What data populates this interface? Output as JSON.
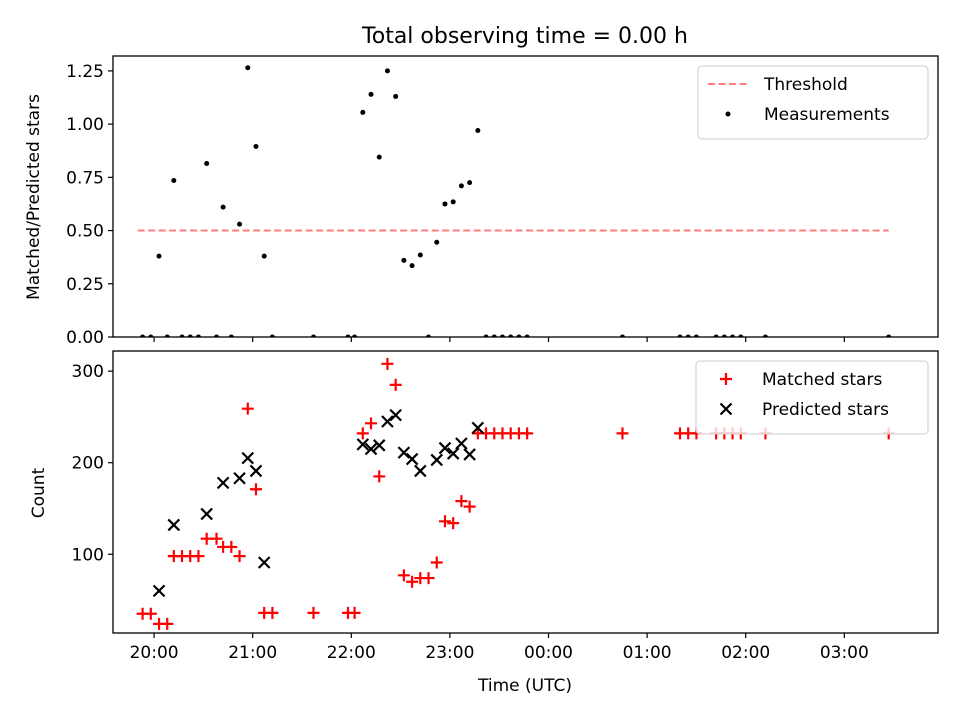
{
  "figure": {
    "title": "Total observing time = 0.00 h",
    "xlabel": "Time (UTC)"
  },
  "chart_data": [
    {
      "type": "scatter",
      "panel": "top",
      "xlabel": "",
      "ylabel": "Matched/Predicted stars",
      "ylim": [
        0,
        1.32
      ],
      "yticks": [
        "0.00",
        "0.25",
        "0.50",
        "0.75",
        "1.00",
        "1.25"
      ],
      "ytick_values": [
        0,
        0.25,
        0.5,
        0.75,
        1.0,
        1.25
      ],
      "xlim": [
        "19:35",
        "03:57"
      ],
      "legend_position": "upper right",
      "threshold": {
        "name": "Threshold",
        "value": 0.5,
        "x_range": [
          "19:50",
          "03:27"
        ],
        "color": "#ff7f7f",
        "style": "dashed"
      },
      "series": [
        {
          "name": "Measurements",
          "color": "#000000",
          "marker": "dot",
          "points": [
            [
              "19:53",
              0.0
            ],
            [
              "19:58",
              0.0
            ],
            [
              "20:03",
              0.38
            ],
            [
              "20:08",
              0.0
            ],
            [
              "20:12",
              0.735
            ],
            [
              "20:17",
              0.0
            ],
            [
              "20:22",
              0.0
            ],
            [
              "20:27",
              0.0
            ],
            [
              "20:32",
              0.815
            ],
            [
              "20:38",
              0.0
            ],
            [
              "20:42",
              0.61
            ],
            [
              "20:47",
              0.0
            ],
            [
              "20:52",
              0.53
            ],
            [
              "20:57",
              1.265
            ],
            [
              "21:02",
              0.895
            ],
            [
              "21:07",
              0.38
            ],
            [
              "21:12",
              0.0
            ],
            [
              "21:37",
              0.0
            ],
            [
              "21:58",
              0.0
            ],
            [
              "22:02",
              0.0
            ],
            [
              "22:07",
              1.055
            ],
            [
              "22:12",
              1.14
            ],
            [
              "22:17",
              0.845
            ],
            [
              "22:22",
              1.25
            ],
            [
              "22:27",
              1.13
            ],
            [
              "22:32",
              0.36
            ],
            [
              "22:37",
              0.335
            ],
            [
              "22:42",
              0.385
            ],
            [
              "22:47",
              0.0
            ],
            [
              "22:52",
              0.445
            ],
            [
              "22:57",
              0.625
            ],
            [
              "23:02",
              0.635
            ],
            [
              "23:07",
              0.71
            ],
            [
              "23:12",
              0.725
            ],
            [
              "23:17",
              0.97
            ],
            [
              "23:22",
              0.0
            ],
            [
              "23:27",
              0.0
            ],
            [
              "23:32",
              0.0
            ],
            [
              "23:37",
              0.0
            ],
            [
              "23:42",
              0.0
            ],
            [
              "23:47",
              0.0
            ],
            [
              "00:45",
              0.0
            ],
            [
              "01:20",
              0.0
            ],
            [
              "01:25",
              0.0
            ],
            [
              "01:30",
              0.0
            ],
            [
              "01:42",
              0.0
            ],
            [
              "01:47",
              0.0
            ],
            [
              "01:52",
              0.0
            ],
            [
              "01:57",
              0.0
            ],
            [
              "02:12",
              0.0
            ],
            [
              "03:27",
              0.0
            ]
          ]
        }
      ]
    },
    {
      "type": "scatter",
      "panel": "bottom",
      "xlabel": "Time (UTC)",
      "ylabel": "Count",
      "ylim": [
        14,
        322
      ],
      "yticks": [
        "100",
        "200",
        "300"
      ],
      "ytick_values": [
        100,
        200,
        300
      ],
      "xlim": [
        "19:35",
        "03:57"
      ],
      "xticks": [
        "20:00",
        "21:00",
        "22:00",
        "23:00",
        "00:00",
        "01:00",
        "02:00",
        "03:00"
      ],
      "legend_position": "upper right",
      "series": [
        {
          "name": "Matched stars",
          "color": "#ff0000",
          "marker": "plus",
          "points": [
            [
              "19:53",
              35
            ],
            [
              "19:58",
              35
            ],
            [
              "20:03",
              24
            ],
            [
              "20:08",
              24
            ],
            [
              "20:12",
              98
            ],
            [
              "20:17",
              98
            ],
            [
              "20:22",
              98
            ],
            [
              "20:27",
              98
            ],
            [
              "20:32",
              117
            ],
            [
              "20:38",
              117
            ],
            [
              "20:42",
              108
            ],
            [
              "20:47",
              108
            ],
            [
              "20:52",
              98
            ],
            [
              "20:57",
              259
            ],
            [
              "21:02",
              171
            ],
            [
              "21:07",
              36
            ],
            [
              "21:12",
              36
            ],
            [
              "21:37",
              36
            ],
            [
              "21:58",
              36
            ],
            [
              "22:02",
              36
            ],
            [
              "22:07",
              232
            ],
            [
              "22:12",
              243
            ],
            [
              "22:17",
              185
            ],
            [
              "22:22",
              308
            ],
            [
              "22:27",
              285
            ],
            [
              "22:32",
              77
            ],
            [
              "22:37",
              70
            ],
            [
              "22:42",
              74
            ],
            [
              "22:47",
              74
            ],
            [
              "22:52",
              91
            ],
            [
              "22:57",
              136
            ],
            [
              "23:02",
              134
            ],
            [
              "23:07",
              158
            ],
            [
              "23:12",
              152
            ],
            [
              "23:17",
              232
            ],
            [
              "23:22",
              232
            ],
            [
              "23:27",
              232
            ],
            [
              "23:32",
              232
            ],
            [
              "23:37",
              232
            ],
            [
              "23:42",
              232
            ],
            [
              "23:47",
              232
            ],
            [
              "00:45",
              232
            ],
            [
              "01:20",
              232
            ],
            [
              "01:25",
              232
            ],
            [
              "01:30",
              232
            ],
            [
              "01:42",
              232
            ],
            [
              "01:47",
              232
            ],
            [
              "01:52",
              232
            ],
            [
              "01:57",
              232
            ],
            [
              "02:12",
              232
            ],
            [
              "03:27",
              232
            ]
          ]
        },
        {
          "name": "Predicted stars",
          "color": "#000000",
          "marker": "x",
          "points": [
            [
              "20:03",
              60
            ],
            [
              "20:12",
              132
            ],
            [
              "20:32",
              144
            ],
            [
              "20:42",
              178
            ],
            [
              "20:52",
              183
            ],
            [
              "20:57",
              205
            ],
            [
              "21:02",
              191
            ],
            [
              "21:07",
              91
            ],
            [
              "22:07",
              220
            ],
            [
              "22:12",
              215
            ],
            [
              "22:17",
              219
            ],
            [
              "22:22",
              245
            ],
            [
              "22:27",
              252
            ],
            [
              "22:32",
              211
            ],
            [
              "22:37",
              204
            ],
            [
              "22:42",
              191
            ],
            [
              "22:52",
              203
            ],
            [
              "22:57",
              216
            ],
            [
              "23:02",
              210
            ],
            [
              "23:07",
              221
            ],
            [
              "23:12",
              209
            ],
            [
              "23:17",
              238
            ]
          ]
        }
      ]
    }
  ]
}
